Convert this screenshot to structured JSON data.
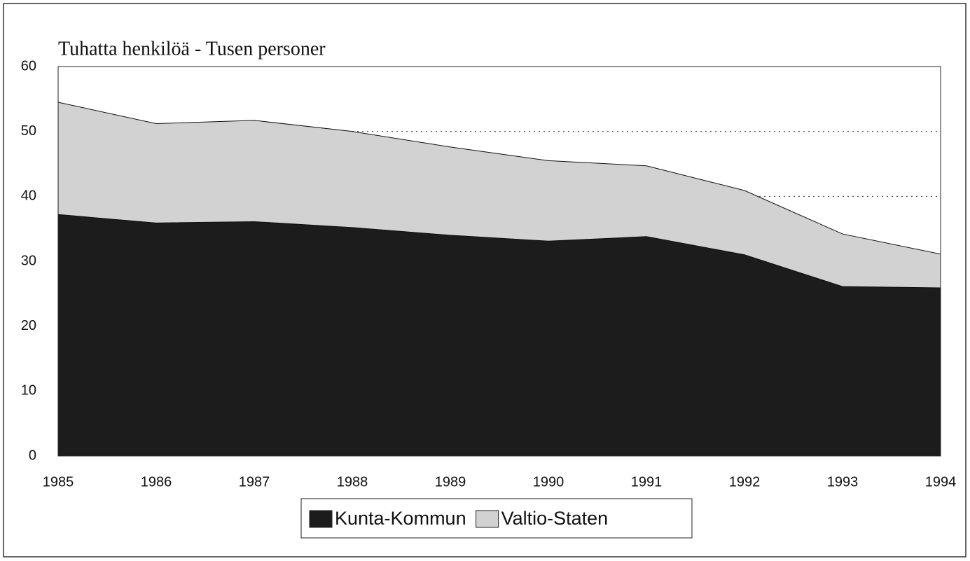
{
  "chart_data": {
    "type": "stacked_area",
    "title": "Tuhatta henkilöä - Tusen personer",
    "categories": [
      "1985",
      "1986",
      "1987",
      "1988",
      "1989",
      "1990",
      "1991",
      "1992",
      "1993",
      "1994"
    ],
    "series": [
      {
        "name": "Kunta-Kommun",
        "color": "#1c1c1c",
        "values": [
          37.2,
          35.9,
          36.1,
          35.2,
          34.0,
          33.1,
          33.8,
          31.0,
          26.1,
          25.9
        ]
      },
      {
        "name": "Valtio-Staten",
        "color": "#d2d2d2",
        "values": [
          17.3,
          15.3,
          15.6,
          14.8,
          13.6,
          12.4,
          10.9,
          9.9,
          8.1,
          5.2
        ]
      }
    ],
    "ylim": [
      0,
      60
    ],
    "yticks": [
      0,
      10,
      20,
      30,
      40,
      50,
      60
    ],
    "grid": true
  }
}
